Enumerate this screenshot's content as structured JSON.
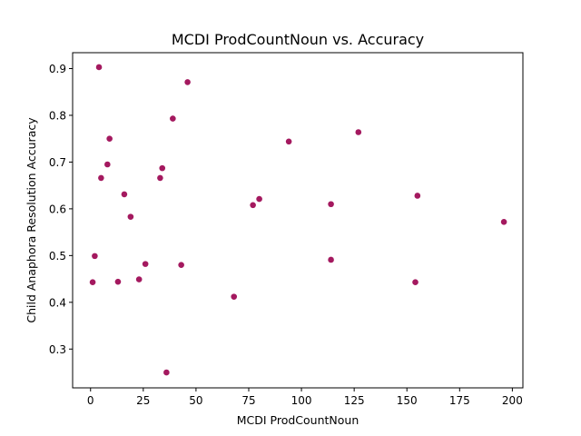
{
  "chart_data": {
    "type": "scatter",
    "title": "MCDI ProdCountNoun vs. Accuracy",
    "xlabel": "MCDI ProdCountNoun",
    "ylabel": "Child Anaphora Resolution Accuracy",
    "xlim": [
      -8.5,
      205
    ],
    "ylim": [
      0.217,
      0.934
    ],
    "xticks": [
      0,
      25,
      50,
      75,
      100,
      125,
      150,
      175,
      200
    ],
    "yticks": [
      0.3,
      0.4,
      0.5,
      0.6,
      0.7,
      0.8,
      0.9
    ],
    "xtick_labels": [
      "0",
      "25",
      "50",
      "75",
      "100",
      "125",
      "150",
      "175",
      "200"
    ],
    "ytick_labels": [
      "0.3",
      "0.4",
      "0.5",
      "0.6",
      "0.7",
      "0.8",
      "0.9"
    ],
    "grid": false,
    "marker_color": "#a4195f",
    "points": [
      {
        "x": 1,
        "y": 0.443
      },
      {
        "x": 2,
        "y": 0.499
      },
      {
        "x": 4,
        "y": 0.903
      },
      {
        "x": 5,
        "y": 0.666
      },
      {
        "x": 8,
        "y": 0.695
      },
      {
        "x": 9,
        "y": 0.75
      },
      {
        "x": 13,
        "y": 0.444
      },
      {
        "x": 16,
        "y": 0.631
      },
      {
        "x": 19,
        "y": 0.583
      },
      {
        "x": 23,
        "y": 0.449
      },
      {
        "x": 26,
        "y": 0.482
      },
      {
        "x": 33,
        "y": 0.666
      },
      {
        "x": 34,
        "y": 0.687
      },
      {
        "x": 36,
        "y": 0.25
      },
      {
        "x": 39,
        "y": 0.793
      },
      {
        "x": 43,
        "y": 0.48
      },
      {
        "x": 46,
        "y": 0.871
      },
      {
        "x": 68,
        "y": 0.412
      },
      {
        "x": 77,
        "y": 0.608
      },
      {
        "x": 80,
        "y": 0.621
      },
      {
        "x": 94,
        "y": 0.744
      },
      {
        "x": 114,
        "y": 0.61
      },
      {
        "x": 114,
        "y": 0.491
      },
      {
        "x": 127,
        "y": 0.764
      },
      {
        "x": 154,
        "y": 0.443
      },
      {
        "x": 155,
        "y": 0.628
      },
      {
        "x": 196,
        "y": 0.572
      }
    ]
  }
}
